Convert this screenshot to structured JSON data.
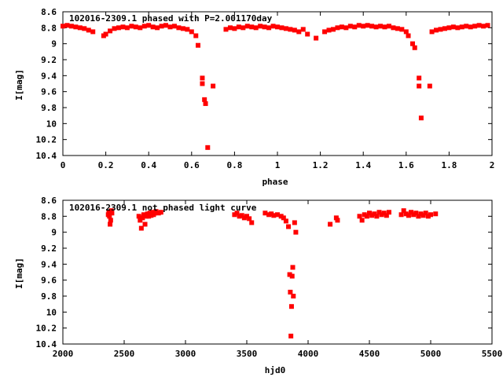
{
  "chart_data": [
    {
      "type": "scatter",
      "title": "102016-2309.1 phased with P=2.001170day",
      "xlabel": "phase",
      "ylabel": "I[mag]",
      "xlim": [
        0,
        2
      ],
      "ylim": [
        10.4,
        8.6
      ],
      "y_inverted": true,
      "xticks": [
        "0",
        "0.2",
        "0.4",
        "0.6",
        "0.8",
        "1",
        "1.2",
        "1.4",
        "1.6",
        "1.8",
        "2"
      ],
      "yticks": [
        "8.6",
        "8.8",
        "9",
        "9.2",
        "9.4",
        "9.6",
        "9.8",
        "10",
        "10.2",
        "10.4"
      ],
      "grid": false,
      "color": "#ff0000",
      "series": [
        {
          "points": [
            [
              0.0,
              8.78
            ],
            [
              0.02,
              8.77
            ],
            [
              0.04,
              8.78
            ],
            [
              0.06,
              8.79
            ],
            [
              0.08,
              8.8
            ],
            [
              0.1,
              8.81
            ],
            [
              0.12,
              8.83
            ],
            [
              0.14,
              8.85
            ],
            [
              0.19,
              8.9
            ],
            [
              0.2,
              8.88
            ],
            [
              0.22,
              8.84
            ],
            [
              0.24,
              8.81
            ],
            [
              0.26,
              8.8
            ],
            [
              0.28,
              8.79
            ],
            [
              0.3,
              8.8
            ],
            [
              0.32,
              8.78
            ],
            [
              0.34,
              8.79
            ],
            [
              0.36,
              8.8
            ],
            [
              0.38,
              8.78
            ],
            [
              0.4,
              8.77
            ],
            [
              0.42,
              8.79
            ],
            [
              0.44,
              8.8
            ],
            [
              0.46,
              8.78
            ],
            [
              0.48,
              8.77
            ],
            [
              0.5,
              8.79
            ],
            [
              0.52,
              8.78
            ],
            [
              0.54,
              8.8
            ],
            [
              0.56,
              8.81
            ],
            [
              0.58,
              8.82
            ],
            [
              0.6,
              8.85
            ],
            [
              0.62,
              8.9
            ],
            [
              0.63,
              9.02
            ],
            [
              0.65,
              9.43
            ],
            [
              0.65,
              9.5
            ],
            [
              0.66,
              9.7
            ],
            [
              0.665,
              9.75
            ],
            [
              0.675,
              10.3
            ],
            [
              0.7,
              9.53
            ],
            [
              0.76,
              8.82
            ],
            [
              0.78,
              8.8
            ],
            [
              0.8,
              8.81
            ],
            [
              0.82,
              8.79
            ],
            [
              0.84,
              8.8
            ],
            [
              0.86,
              8.78
            ],
            [
              0.88,
              8.79
            ],
            [
              0.9,
              8.8
            ],
            [
              0.92,
              8.78
            ],
            [
              0.94,
              8.79
            ],
            [
              0.96,
              8.8
            ],
            [
              0.98,
              8.78
            ],
            [
              1.0,
              8.79
            ],
            [
              1.02,
              8.8
            ],
            [
              1.04,
              8.81
            ],
            [
              1.06,
              8.82
            ],
            [
              1.08,
              8.83
            ],
            [
              1.1,
              8.85
            ],
            [
              1.12,
              8.82
            ],
            [
              1.14,
              8.88
            ],
            [
              1.18,
              8.93
            ],
            [
              1.22,
              8.85
            ],
            [
              1.24,
              8.83
            ],
            [
              1.26,
              8.82
            ],
            [
              1.28,
              8.8
            ],
            [
              1.3,
              8.79
            ],
            [
              1.32,
              8.8
            ],
            [
              1.34,
              8.78
            ],
            [
              1.36,
              8.79
            ],
            [
              1.38,
              8.77
            ],
            [
              1.4,
              8.78
            ],
            [
              1.42,
              8.77
            ],
            [
              1.44,
              8.78
            ],
            [
              1.46,
              8.79
            ],
            [
              1.48,
              8.78
            ],
            [
              1.5,
              8.79
            ],
            [
              1.52,
              8.78
            ],
            [
              1.54,
              8.8
            ],
            [
              1.56,
              8.81
            ],
            [
              1.58,
              8.82
            ],
            [
              1.6,
              8.85
            ],
            [
              1.61,
              8.9
            ],
            [
              1.63,
              9.0
            ],
            [
              1.64,
              9.05
            ],
            [
              1.66,
              9.43
            ],
            [
              1.66,
              9.53
            ],
            [
              1.67,
              9.93
            ],
            [
              1.71,
              9.53
            ],
            [
              1.72,
              8.85
            ],
            [
              1.74,
              8.83
            ],
            [
              1.76,
              8.82
            ],
            [
              1.78,
              8.81
            ],
            [
              1.8,
              8.8
            ],
            [
              1.82,
              8.79
            ],
            [
              1.84,
              8.8
            ],
            [
              1.86,
              8.79
            ],
            [
              1.88,
              8.78
            ],
            [
              1.9,
              8.79
            ],
            [
              1.92,
              8.78
            ],
            [
              1.94,
              8.77
            ],
            [
              1.96,
              8.78
            ],
            [
              1.98,
              8.77
            ]
          ]
        }
      ]
    },
    {
      "type": "scatter",
      "title": "102016-2309.1 not phased light curve",
      "xlabel": "hjd0",
      "ylabel": "I[mag]",
      "xlim": [
        2000,
        5500
      ],
      "ylim": [
        10.4,
        8.6
      ],
      "y_inverted": true,
      "xticks": [
        "2000",
        "2500",
        "3000",
        "3500",
        "4000",
        "4500",
        "5000",
        "5500"
      ],
      "yticks": [
        "8.6",
        "8.8",
        "9",
        "9.2",
        "9.4",
        "9.6",
        "9.8",
        "10",
        "10.2",
        "10.4"
      ],
      "grid": false,
      "color": "#ff0000",
      "series": [
        {
          "points": [
            [
              2370,
              8.78
            ],
            [
              2375,
              8.75
            ],
            [
              2380,
              8.8
            ],
            [
              2385,
              8.9
            ],
            [
              2390,
              8.85
            ],
            [
              2395,
              8.73
            ],
            [
              2400,
              8.76
            ],
            [
              2620,
              8.8
            ],
            [
              2630,
              8.85
            ],
            [
              2640,
              8.95
            ],
            [
              2650,
              8.82
            ],
            [
              2660,
              8.78
            ],
            [
              2670,
              8.9
            ],
            [
              2680,
              8.8
            ],
            [
              2690,
              8.77
            ],
            [
              2700,
              8.8
            ],
            [
              2710,
              8.76
            ],
            [
              2720,
              8.79
            ],
            [
              2730,
              8.75
            ],
            [
              2740,
              8.78
            ],
            [
              2750,
              8.76
            ],
            [
              2760,
              8.74
            ],
            [
              2780,
              8.76
            ],
            [
              2800,
              8.75
            ],
            [
              3400,
              8.78
            ],
            [
              3420,
              8.76
            ],
            [
              3440,
              8.8
            ],
            [
              3460,
              8.79
            ],
            [
              3480,
              8.82
            ],
            [
              3500,
              8.8
            ],
            [
              3520,
              8.83
            ],
            [
              3540,
              8.88
            ],
            [
              3650,
              8.76
            ],
            [
              3680,
              8.78
            ],
            [
              3700,
              8.77
            ],
            [
              3720,
              8.79
            ],
            [
              3750,
              8.78
            ],
            [
              3780,
              8.8
            ],
            [
              3800,
              8.82
            ],
            [
              3820,
              8.86
            ],
            [
              3840,
              8.93
            ],
            [
              3850,
              9.53
            ],
            [
              3855,
              9.75
            ],
            [
              3860,
              10.3
            ],
            [
              3865,
              9.93
            ],
            [
              3870,
              9.55
            ],
            [
              3875,
              9.44
            ],
            [
              3880,
              9.8
            ],
            [
              3890,
              8.88
            ],
            [
              3900,
              9.0
            ],
            [
              4180,
              8.9
            ],
            [
              4230,
              8.82
            ],
            [
              4240,
              8.85
            ],
            [
              4420,
              8.8
            ],
            [
              4440,
              8.85
            ],
            [
              4460,
              8.78
            ],
            [
              4480,
              8.8
            ],
            [
              4500,
              8.76
            ],
            [
              4520,
              8.79
            ],
            [
              4540,
              8.77
            ],
            [
              4560,
              8.8
            ],
            [
              4580,
              8.75
            ],
            [
              4600,
              8.78
            ],
            [
              4620,
              8.76
            ],
            [
              4640,
              8.79
            ],
            [
              4660,
              8.75
            ],
            [
              4760,
              8.78
            ],
            [
              4780,
              8.73
            ],
            [
              4800,
              8.77
            ],
            [
              4820,
              8.79
            ],
            [
              4840,
              8.75
            ],
            [
              4860,
              8.78
            ],
            [
              4880,
              8.76
            ],
            [
              4900,
              8.8
            ],
            [
              4920,
              8.77
            ],
            [
              4940,
              8.79
            ],
            [
              4960,
              8.76
            ],
            [
              4980,
              8.8
            ],
            [
              5000,
              8.78
            ],
            [
              5040,
              8.77
            ]
          ]
        }
      ]
    }
  ]
}
